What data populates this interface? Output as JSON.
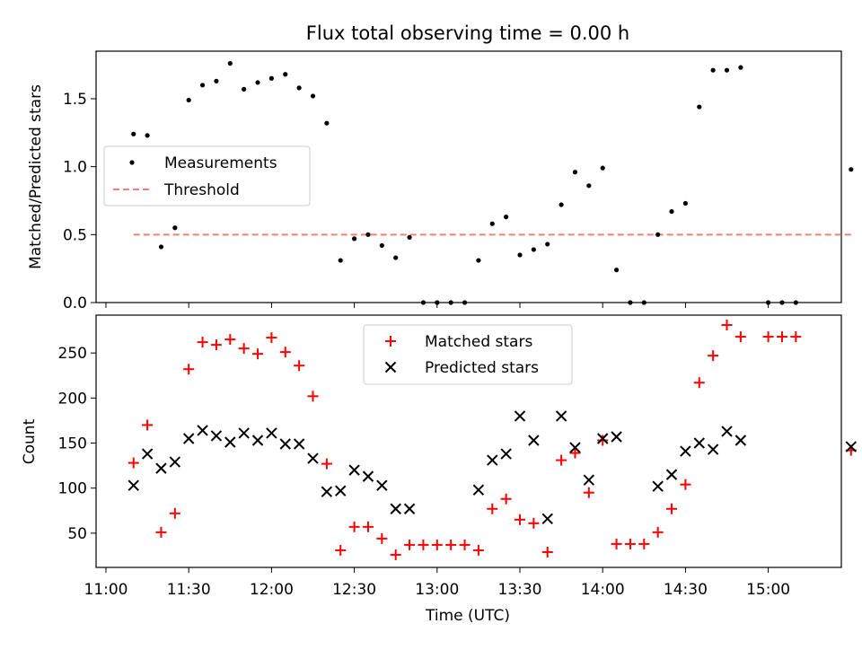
{
  "chart_data": [
    {
      "type": "scatter",
      "title": "Flux total observing time = 0.00 h",
      "xlabel": "",
      "ylabel": "Matched/Predicted stars",
      "xlim": [
        "11:00",
        "15:30"
      ],
      "ylim": [
        0,
        1.85
      ],
      "yticks": [
        0.0,
        0.5,
        1.0,
        1.5
      ],
      "ytick_labels": [
        "0.0",
        "0.5",
        "1.0",
        "1.5"
      ],
      "legend_position": "middle-left",
      "threshold": {
        "name": "Threshold",
        "value": 0.5,
        "x_start": "11:10",
        "x_end": "15:30",
        "color": "#f08080"
      },
      "series": [
        {
          "name": "Measurements",
          "color": "#000000",
          "marker": "dot",
          "x": [
            "11:10",
            "11:15",
            "11:20",
            "11:25",
            "11:30",
            "11:35",
            "11:40",
            "11:45",
            "11:50",
            "11:55",
            "12:00",
            "12:05",
            "12:10",
            "12:15",
            "12:20",
            "12:25",
            "12:30",
            "12:35",
            "12:40",
            "12:45",
            "12:50",
            "12:55",
            "13:00",
            "13:05",
            "13:10",
            "13:15",
            "13:20",
            "13:25",
            "13:30",
            "13:35",
            "13:40",
            "13:45",
            "13:50",
            "13:55",
            "14:00",
            "14:05",
            "14:10",
            "14:15",
            "14:20",
            "14:25",
            "14:30",
            "14:35",
            "14:40",
            "14:45",
            "14:50",
            "14:55",
            "15:00",
            "15:05",
            "15:10",
            "15:15",
            "15:20",
            "15:25",
            "15:30"
          ],
          "y": [
            1.24,
            1.23,
            0.41,
            0.55,
            1.49,
            1.6,
            1.63,
            1.76,
            1.57,
            1.62,
            1.65,
            1.68,
            1.58,
            1.52,
            1.32,
            0.31,
            0.47,
            0.5,
            0.42,
            0.33,
            0.48,
            0.0,
            0.0,
            0.0,
            0.0,
            0.31,
            0.58,
            0.63,
            0.35,
            0.39,
            0.43,
            0.72,
            0.96,
            0.86,
            0.99,
            0.24,
            0.0,
            0.0,
            0.5,
            0.67,
            0.73,
            1.44,
            1.71,
            1.71,
            1.73,
            null,
            0.0,
            0.0,
            0.0,
            null,
            null,
            null,
            0.98
          ]
        }
      ]
    },
    {
      "type": "scatter",
      "title": "",
      "xlabel": "Time (UTC)",
      "ylabel": "Count",
      "xlim": [
        "11:00",
        "15:30"
      ],
      "xticks": [
        "11:00",
        "11:30",
        "12:00",
        "12:30",
        "13:00",
        "13:30",
        "14:00",
        "14:30",
        "15:00"
      ],
      "ylim": [
        12,
        292
      ],
      "yticks": [
        50,
        100,
        150,
        200,
        250
      ],
      "legend_position": "top-center",
      "series": [
        {
          "name": "Matched stars",
          "color": "#ff0000",
          "marker": "plus",
          "x": [
            "11:10",
            "11:15",
            "11:20",
            "11:25",
            "11:30",
            "11:35",
            "11:40",
            "11:45",
            "11:50",
            "11:55",
            "12:00",
            "12:05",
            "12:10",
            "12:15",
            "12:20",
            "12:25",
            "12:30",
            "12:35",
            "12:40",
            "12:45",
            "12:50",
            "12:55",
            "13:00",
            "13:05",
            "13:10",
            "13:15",
            "13:20",
            "13:25",
            "13:30",
            "13:35",
            "13:40",
            "13:45",
            "13:50",
            "13:55",
            "14:00",
            "14:05",
            "14:10",
            "14:15",
            "14:20",
            "14:25",
            "14:30",
            "14:35",
            "14:40",
            "14:45",
            "14:50",
            "14:55",
            "15:00",
            "15:05",
            "15:10",
            "15:15",
            "15:20",
            "15:25",
            "15:30"
          ],
          "y": [
            128,
            170,
            51,
            72,
            232,
            262,
            259,
            265,
            255,
            249,
            267,
            251,
            236,
            202,
            127,
            31,
            57,
            57,
            44,
            26,
            37,
            37,
            37,
            37,
            37,
            31,
            77,
            88,
            65,
            61,
            29,
            131,
            139,
            95,
            153,
            38,
            38,
            38,
            51,
            77,
            104,
            217,
            247,
            281,
            268,
            null,
            268,
            268,
            268,
            null,
            null,
            null,
            142
          ]
        },
        {
          "name": "Predicted stars",
          "color": "#000000",
          "marker": "x",
          "x": [
            "11:10",
            "11:15",
            "11:20",
            "11:25",
            "11:30",
            "11:35",
            "11:40",
            "11:45",
            "11:50",
            "11:55",
            "12:00",
            "12:05",
            "12:10",
            "12:15",
            "12:20",
            "12:25",
            "12:30",
            "12:35",
            "12:40",
            "12:45",
            "12:50",
            "13:15",
            "13:20",
            "13:25",
            "13:30",
            "13:35",
            "13:40",
            "13:45",
            "13:50",
            "13:55",
            "14:00",
            "14:05",
            "14:20",
            "14:25",
            "14:30",
            "14:35",
            "14:40",
            "14:45",
            "14:50",
            "15:30"
          ],
          "y": [
            103,
            138,
            122,
            129,
            155,
            164,
            158,
            151,
            161,
            153,
            161,
            149,
            149,
            133,
            96,
            97,
            120,
            113,
            103,
            77,
            77,
            98,
            131,
            138,
            180,
            153,
            66,
            180,
            145,
            109,
            155,
            157,
            102,
            115,
            141,
            150,
            143,
            163,
            153,
            146
          ]
        }
      ]
    }
  ]
}
